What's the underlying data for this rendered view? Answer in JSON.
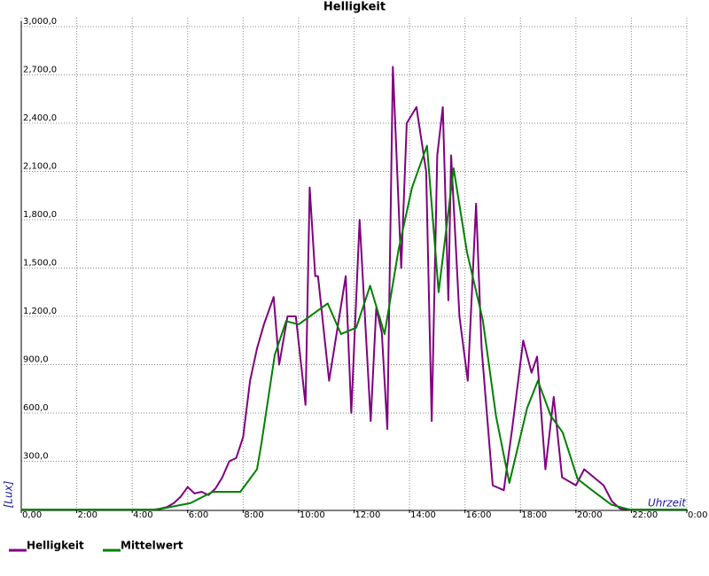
{
  "chart_data": {
    "type": "line",
    "title": "Helligkeit",
    "y_label": "[Lux]",
    "x_label": "Uhrzeit",
    "xlim": [
      0,
      24
    ],
    "xticks": [
      {
        "value": 0,
        "label": "0,00"
      },
      {
        "value": 2,
        "label": "2:00"
      },
      {
        "value": 4,
        "label": "4:00"
      },
      {
        "value": 6,
        "label": "6:00"
      },
      {
        "value": 8,
        "label": "8:00"
      },
      {
        "value": 10,
        "label": "10:00"
      },
      {
        "value": 12,
        "label": "12:00"
      },
      {
        "value": 14,
        "label": "14:00"
      },
      {
        "value": 16,
        "label": "16:00"
      },
      {
        "value": 18,
        "label": "18:00"
      },
      {
        "value": 20,
        "label": "20:00"
      },
      {
        "value": 22,
        "label": "22:00"
      },
      {
        "value": 24,
        "label": "0:00"
      }
    ],
    "ylim": [
      0,
      3000
    ],
    "yticks": [
      {
        "value": 300,
        "label": "300,0"
      },
      {
        "value": 600,
        "label": "600,0"
      },
      {
        "value": 900,
        "label": "900,0"
      },
      {
        "value": 1200,
        "label": "1,200,0"
      },
      {
        "value": 1500,
        "label": "1,500,0"
      },
      {
        "value": 1800,
        "label": "1,800,0"
      },
      {
        "value": 2100,
        "label": "2,100,0"
      },
      {
        "value": 2400,
        "label": "2,400,0"
      },
      {
        "value": 2700,
        "label": "2,700,0"
      },
      {
        "value": 3000,
        "label": "3,000,0"
      }
    ],
    "grid": true,
    "series": [
      {
        "name": "Helligkeit",
        "color": "#800080",
        "x": [
          0,
          4.8,
          5.0,
          5.25,
          5.5,
          5.75,
          6.0,
          6.25,
          6.5,
          6.75,
          7.0,
          7.25,
          7.5,
          7.75,
          8.0,
          8.25,
          8.5,
          8.75,
          9.1,
          9.3,
          9.6,
          9.9,
          10.25,
          10.4,
          10.6,
          10.7,
          11.1,
          11.7,
          11.9,
          12.2,
          12.6,
          12.8,
          13.0,
          13.2,
          13.4,
          13.7,
          13.9,
          14.25,
          14.6,
          14.8,
          15.0,
          15.2,
          15.4,
          15.5,
          15.8,
          16.1,
          16.4,
          16.6,
          17.0,
          17.4,
          17.7,
          18.1,
          18.4,
          18.6,
          18.9,
          19.2,
          19.5,
          20.0,
          20.3,
          21.0,
          21.3,
          21.6,
          22.0,
          24
        ],
        "values": [
          0,
          0,
          5,
          15,
          40,
          80,
          140,
          100,
          110,
          90,
          130,
          200,
          300,
          320,
          450,
          800,
          1000,
          1150,
          1320,
          900,
          1200,
          1200,
          650,
          2000,
          1450,
          1450,
          800,
          1450,
          600,
          1800,
          550,
          1250,
          1100,
          500,
          2750,
          1500,
          2400,
          2500,
          2100,
          550,
          2200,
          2500,
          1300,
          2200,
          1200,
          800,
          1900,
          1000,
          150,
          120,
          500,
          1050,
          850,
          950,
          250,
          700,
          200,
          150,
          250,
          150,
          50,
          5,
          0,
          0
        ]
      },
      {
        "name": "Mittelwert",
        "color": "#008000",
        "x": [
          0,
          4.9,
          6.1,
          6.9,
          7.9,
          8.5,
          8.66,
          9.14,
          9.55,
          10.0,
          11.05,
          11.53,
          12.08,
          12.58,
          13.1,
          13.61,
          14.09,
          14.63,
          15.05,
          15.59,
          16.07,
          16.64,
          17.12,
          17.6,
          18.24,
          18.63,
          19.1,
          19.52,
          20.06,
          20.58,
          21.28,
          21.92,
          24
        ],
        "values": [
          0,
          0,
          40,
          110,
          110,
          250,
          410,
          960,
          1170,
          1150,
          1280,
          1090,
          1130,
          1390,
          1090,
          1620,
          2000,
          2260,
          1350,
          2120,
          1600,
          1180,
          580,
          165,
          630,
          800,
          580,
          480,
          190,
          120,
          30,
          0,
          0
        ]
      }
    ]
  }
}
